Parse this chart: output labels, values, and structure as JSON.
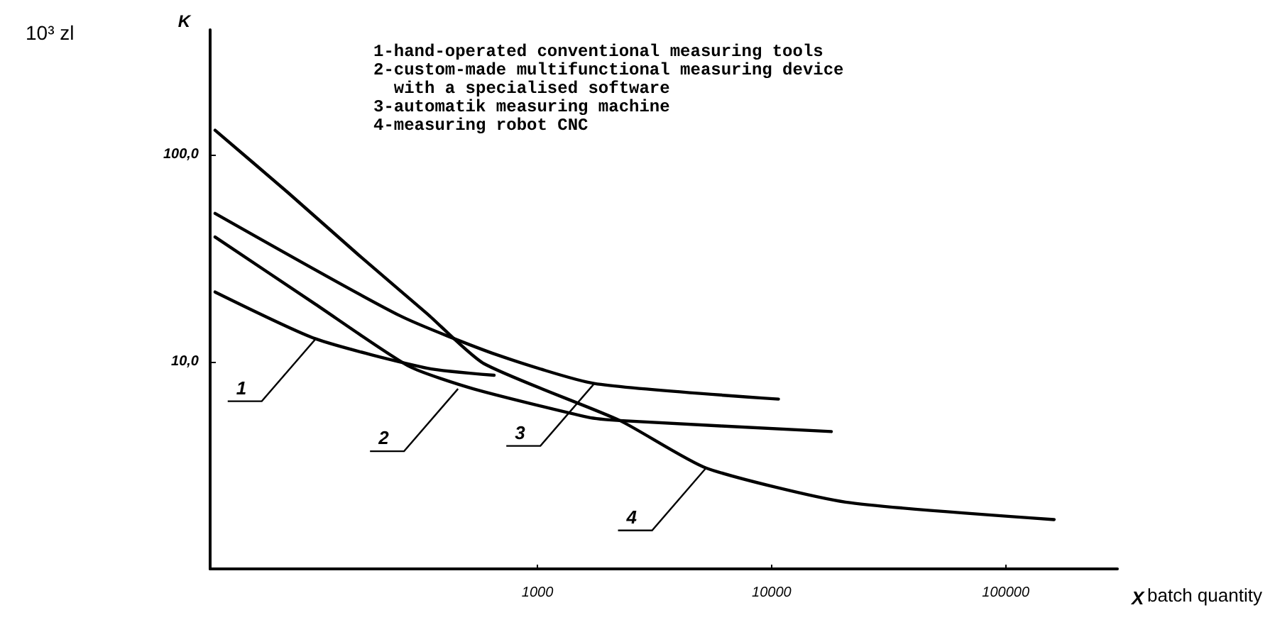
{
  "chart_data": {
    "type": "line",
    "xlabel": "X",
    "ylabel": "K",
    "log": "xy",
    "xlim": [
      40,
      300000
    ],
    "ylim": [
      1,
      400
    ],
    "xticks": [
      1000,
      10000,
      100000
    ],
    "yticks": [
      {
        "value": 100,
        "label": "100,0"
      },
      {
        "value": 10,
        "label": "10,0"
      }
    ],
    "grid": false,
    "marker": "none",
    "line_style": "solid",
    "series": [
      {
        "color": "#000000",
        "x": [
          42,
          113,
          339,
          653
        ],
        "values": [
          21.7,
          12.9,
          9.3,
          8.6
        ]
      },
      {
        "color": "#000000",
        "x": [
          42,
          113,
          283,
          532,
          1640,
          2250,
          18000
        ],
        "values": [
          40,
          18.9,
          9.5,
          7.4,
          5.4,
          5.2,
          4.6
        ]
      },
      {
        "color": "#000000",
        "x": [
          42,
          258,
          671,
          1750,
          10700
        ],
        "values": [
          52,
          16.7,
          10.8,
          7.85,
          6.6
        ]
      },
      {
        "color": "#000000",
        "x": [
          42,
          86,
          171,
          339,
          590,
          2250,
          5250,
          20700,
          161000
        ],
        "values": [
          131,
          65.5,
          33,
          17,
          9.8,
          5.2,
          3.07,
          2.1,
          1.73
        ]
      }
    ],
    "annotations": [
      "1-hand-operated conventional measuring tools",
      "2-custom-made multifunctional measuring device\n  with a specialised software",
      "3-automatik measuring machine",
      "4-measuring robot CNC",
      "10³ zl",
      "batch quantity",
      {
        "text": "1",
        "x": 113,
        "y": 12.9
      },
      {
        "text": "2",
        "x": 458,
        "y": 7.4
      },
      {
        "text": "3",
        "x": 1750,
        "y": 7.85
      },
      {
        "text": "4",
        "x": 5250,
        "y": 3.07
      }
    ]
  }
}
